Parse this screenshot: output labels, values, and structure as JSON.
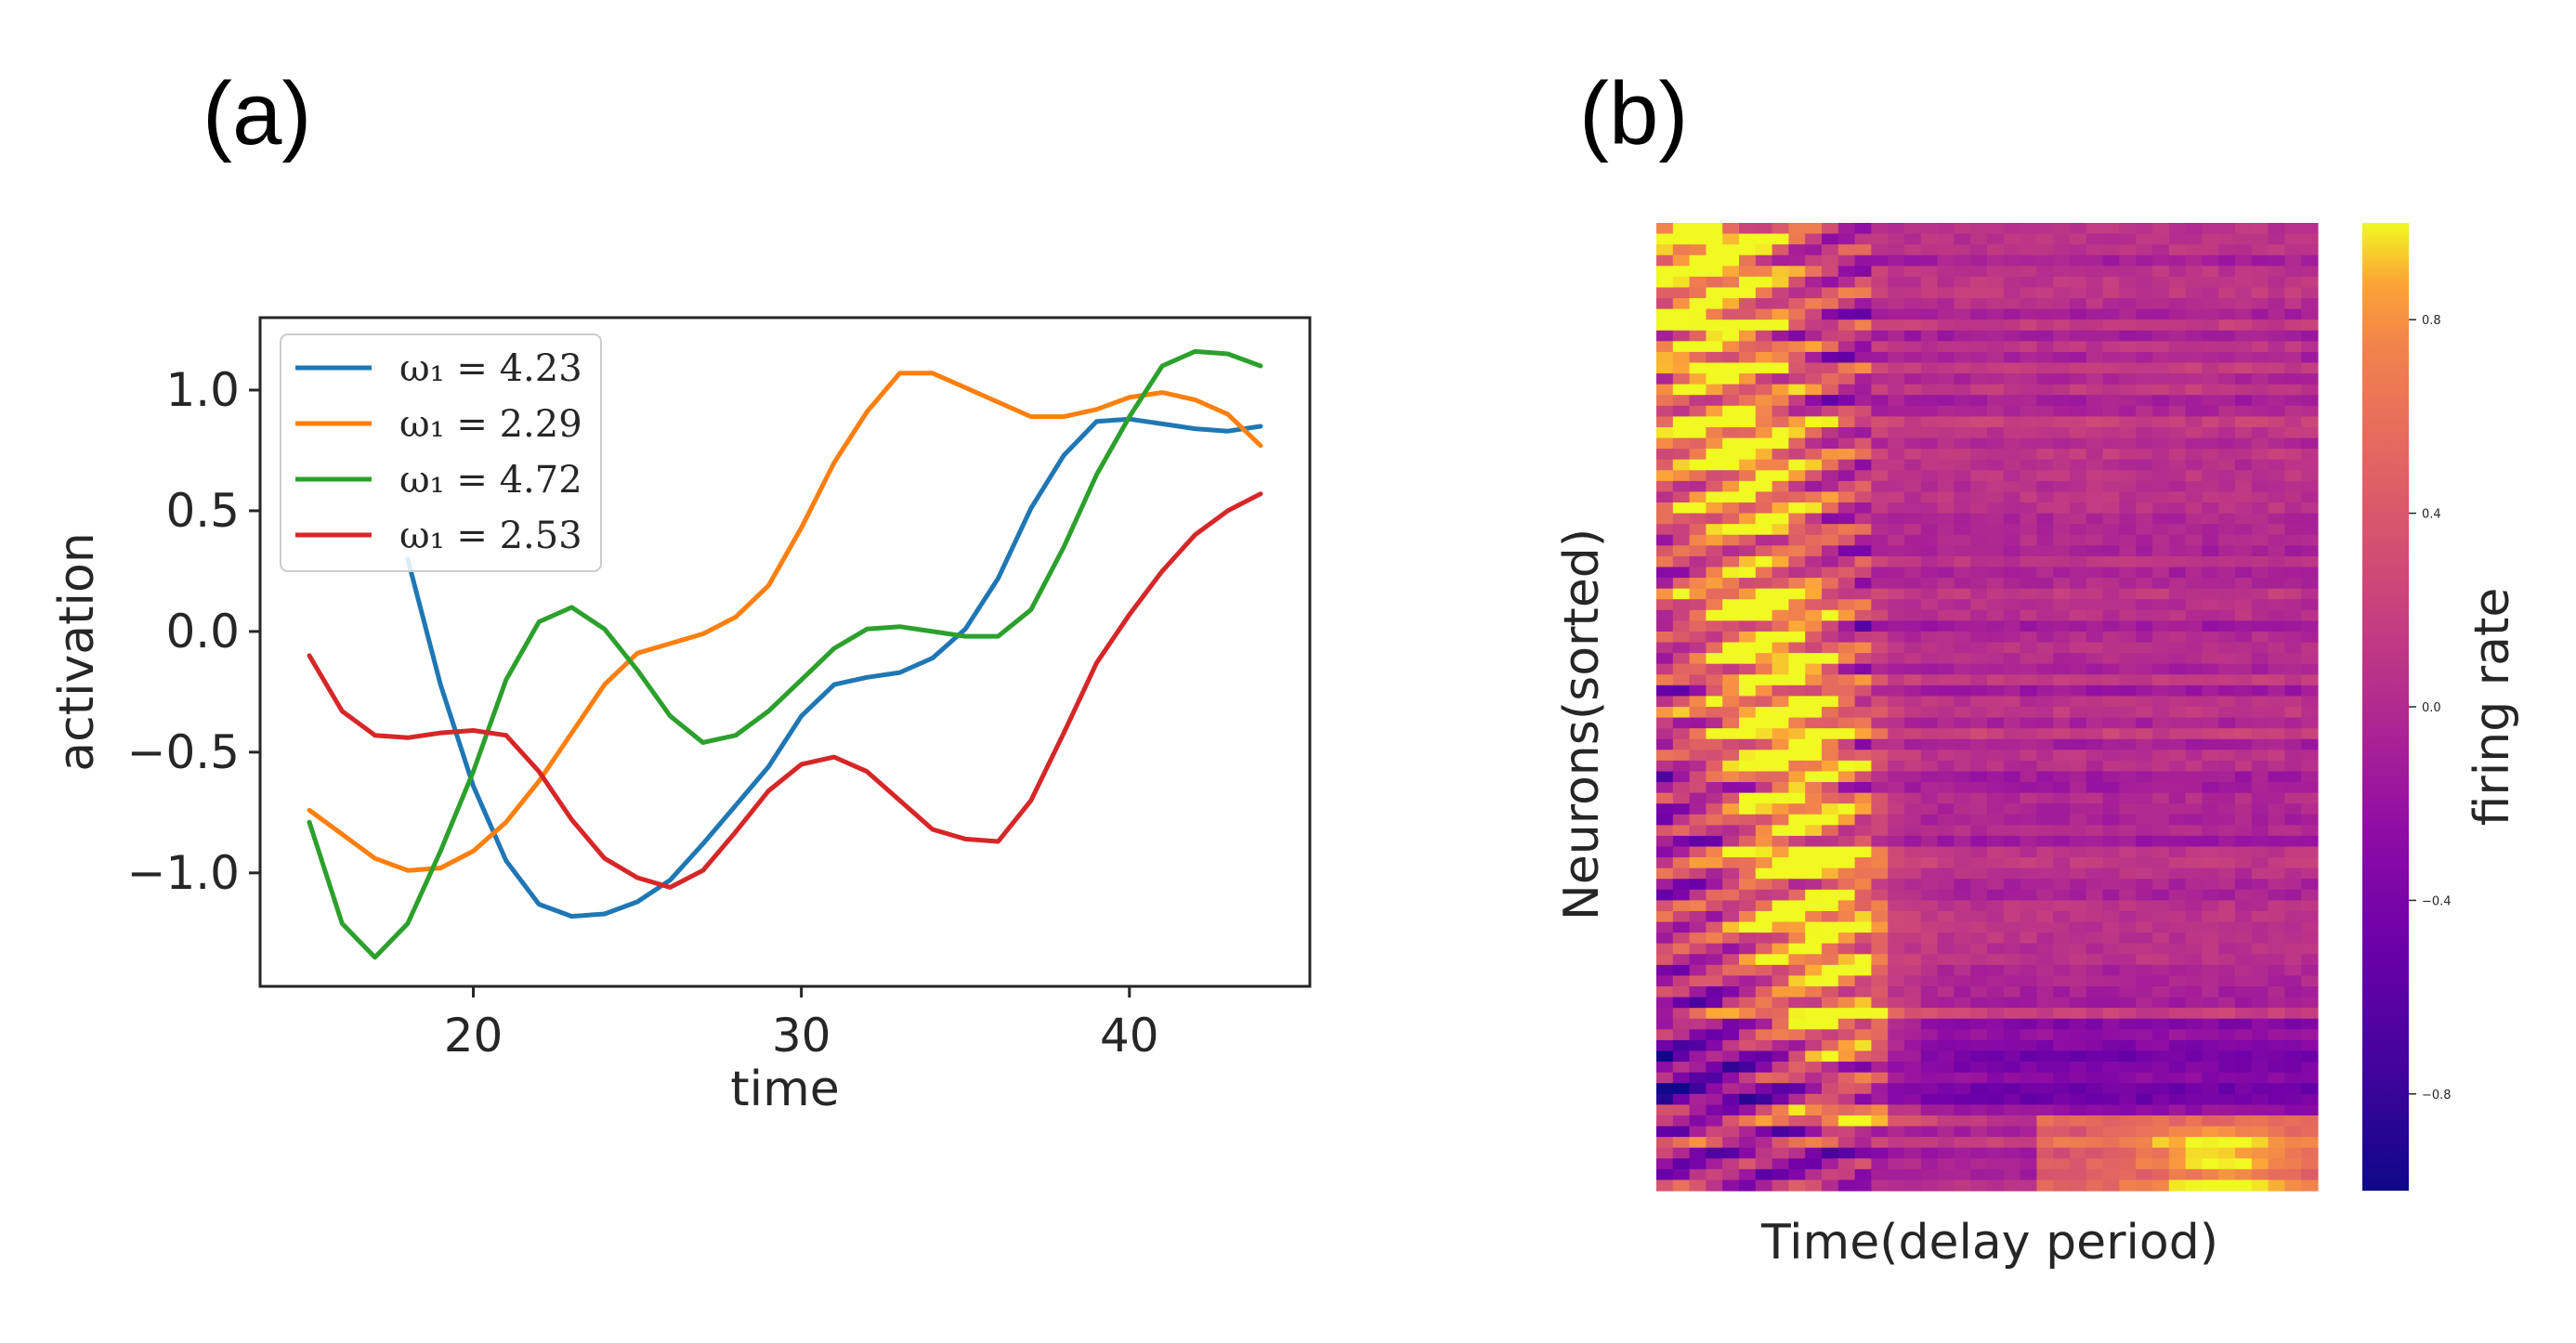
{
  "panels": {
    "a_label": "(a)",
    "b_label": "(b)"
  },
  "chart_data": [
    {
      "type": "line",
      "panel": "(a)",
      "xlabel": "time",
      "ylabel": "activation",
      "xlim": [
        13.5,
        45.5
      ],
      "ylim": [
        -1.47,
        1.3
      ],
      "xticks": [
        20,
        30,
        40
      ],
      "xtick_labels": [
        "20",
        "30",
        "40"
      ],
      "yticks": [
        -1.0,
        -0.5,
        0.0,
        0.5,
        1.0
      ],
      "ytick_labels": [
        "−1.0",
        "−0.5",
        "0.0",
        "0.5",
        "1.0"
      ],
      "grid": false,
      "legend_position": "top-left",
      "x": [
        15,
        16,
        17,
        18,
        19,
        20,
        21,
        22,
        23,
        24,
        25,
        26,
        27,
        28,
        29,
        30,
        31,
        32,
        33,
        34,
        35,
        36,
        37,
        38,
        39,
        40,
        41,
        42,
        43,
        44
      ],
      "series": [
        {
          "name": "ω₁ = 4.23",
          "color": "#1f77b4",
          "values": [
            null,
            null,
            null,
            0.3,
            -0.22,
            -0.64,
            -0.95,
            -1.13,
            -1.18,
            -1.17,
            -1.12,
            -1.03,
            -0.88,
            -0.72,
            -0.56,
            -0.35,
            -0.22,
            -0.19,
            -0.17,
            -0.11,
            0.01,
            0.22,
            0.51,
            0.73,
            0.87,
            0.88,
            0.86,
            0.84,
            0.83,
            0.85
          ]
        },
        {
          "name": "ω₁ = 2.29",
          "color": "#ff7f0e",
          "values": [
            -0.74,
            -0.84,
            -0.94,
            -0.99,
            -0.98,
            -0.91,
            -0.79,
            -0.62,
            -0.42,
            -0.22,
            -0.09,
            -0.05,
            -0.01,
            0.06,
            0.19,
            0.43,
            0.7,
            0.91,
            1.07,
            1.07,
            1.01,
            0.95,
            0.89,
            0.89,
            0.92,
            0.97,
            0.99,
            0.96,
            0.9,
            0.77
          ]
        },
        {
          "name": "ω₁ = 4.72",
          "color": "#2ca02c",
          "values": [
            -0.79,
            -1.21,
            -1.35,
            -1.21,
            -0.91,
            -0.58,
            -0.2,
            0.04,
            0.1,
            0.01,
            -0.16,
            -0.35,
            -0.46,
            -0.43,
            -0.33,
            -0.2,
            -0.07,
            0.01,
            0.02,
            0.0,
            -0.02,
            -0.02,
            0.09,
            0.35,
            0.65,
            0.89,
            1.1,
            1.16,
            1.15,
            1.1
          ]
        },
        {
          "name": "ω₁ = 2.53",
          "color": "#d62728",
          "values": [
            -0.1,
            -0.33,
            -0.43,
            -0.44,
            -0.42,
            -0.41,
            -0.43,
            -0.58,
            -0.78,
            -0.94,
            -1.02,
            -1.06,
            -0.99,
            -0.83,
            -0.66,
            -0.55,
            -0.52,
            -0.58,
            -0.7,
            -0.82,
            -0.86,
            -0.87,
            -0.7,
            -0.42,
            -0.13,
            0.07,
            0.25,
            0.4,
            0.5,
            0.57
          ]
        }
      ]
    },
    {
      "type": "heatmap",
      "panel": "(b)",
      "xlabel": "Time(delay period)",
      "ylabel": "Neurons(sorted)",
      "colorbar_label": "firing rate",
      "colormap": "plasma",
      "value_range": [
        -1.0,
        1.0
      ],
      "colorbar_ticks": [
        0.8,
        0.4,
        0.0,
        -0.4,
        -0.8
      ],
      "colorbar_tick_labels": [
        "0.8",
        "0.4",
        "0.0",
        "−0.4",
        "−0.8"
      ],
      "n_time_bins": 40,
      "n_neurons": 90
    }
  ]
}
